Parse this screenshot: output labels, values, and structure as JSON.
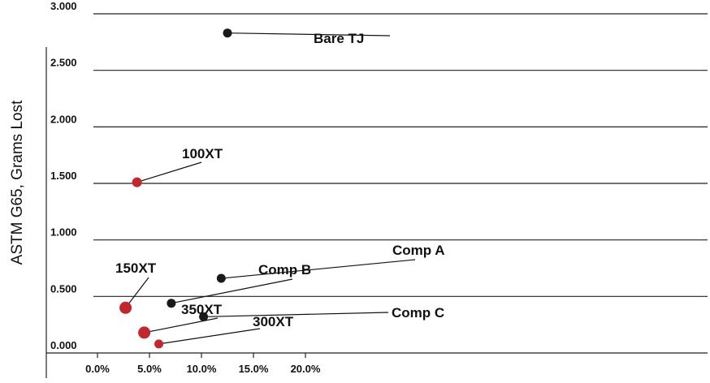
{
  "chart_data": {
    "type": "scatter",
    "title": "",
    "xlabel": "",
    "ylabel": "ASTM G65, Grams Lost",
    "xlim": [
      0,
      0.235
    ],
    "ylim": [
      0,
      3.0
    ],
    "x_ticks": [
      0.0,
      0.05,
      0.1,
      0.15,
      0.2
    ],
    "x_tick_labels": [
      "0.0%",
      "5.0%",
      "10.0%",
      "15.0%",
      "20.0%"
    ],
    "y_ticks": [
      0.0,
      0.5,
      1.0,
      1.5,
      2.0,
      2.5,
      3.0
    ],
    "y_tick_labels": [
      "0.000",
      "0.500",
      "1.000",
      "1.500",
      "2.000",
      "2.500",
      "3.000"
    ],
    "grid": "horizontal",
    "colors": {
      "red": "#c0282d",
      "black": "#1a1a1a"
    },
    "points": [
      {
        "label": "Bare TJ",
        "x": 0.125,
        "y": 2.83,
        "color": "black"
      },
      {
        "label": "100XT",
        "x": 0.038,
        "y": 1.51,
        "color": "red"
      },
      {
        "label": "Comp A",
        "x": 0.119,
        "y": 0.66,
        "color": "black"
      },
      {
        "label": "Comp B",
        "x": 0.071,
        "y": 0.44,
        "color": "black"
      },
      {
        "label": "150XT",
        "x": 0.027,
        "y": 0.4,
        "color": "red"
      },
      {
        "label": "Comp C",
        "x": 0.102,
        "y": 0.32,
        "color": "black"
      },
      {
        "label": "350XT",
        "x": 0.045,
        "y": 0.18,
        "color": "red"
      },
      {
        "label": "300XT",
        "x": 0.059,
        "y": 0.08,
        "color": "red"
      }
    ]
  }
}
